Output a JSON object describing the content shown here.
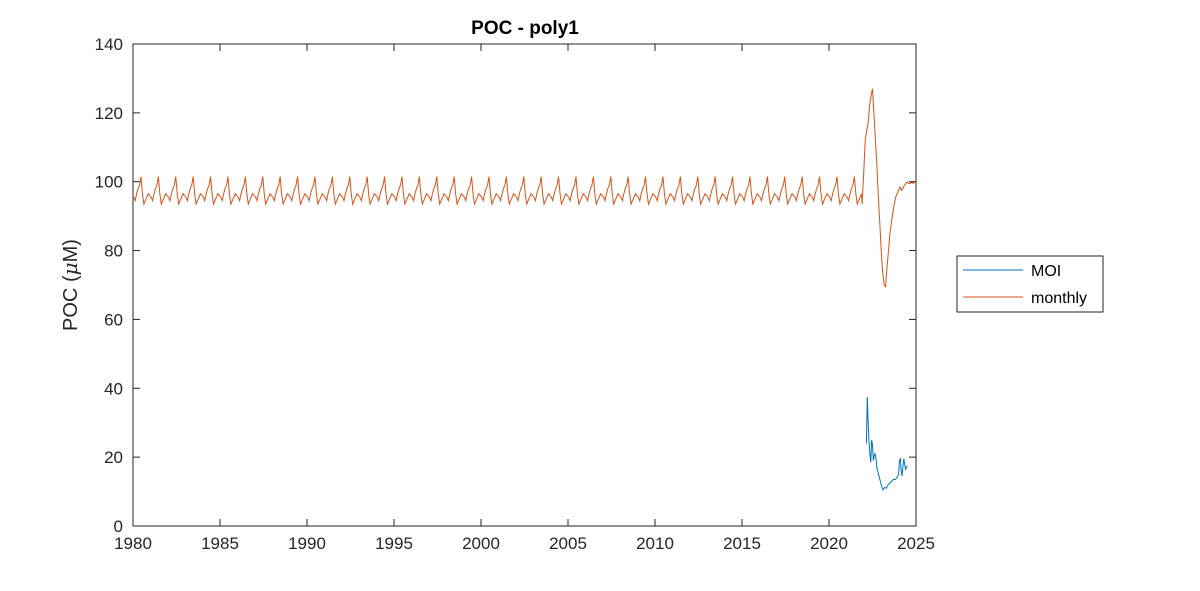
{
  "chart_data": {
    "type": "line",
    "title": "POC - poly1",
    "xlabel": "",
    "ylabel_text": "POC (",
    "ylabel_mu": "μ",
    "ylabel_unit": "M)",
    "xlim": [
      1980,
      2025
    ],
    "ylim": [
      0,
      140
    ],
    "xticks": [
      1980,
      1985,
      1990,
      1995,
      2000,
      2005,
      2010,
      2015,
      2020,
      2025
    ],
    "yticks": [
      0,
      20,
      40,
      60,
      80,
      100,
      120,
      140
    ],
    "grid": false,
    "legend_position": "outside-right",
    "seasonal_cycle": {
      "description_values": "monthly climatology repeated each year 1980-2021",
      "start_year": 1980,
      "end_year": 2022,
      "month_values": [
        95.5,
        94.5,
        96.5,
        98,
        99,
        101.5,
        96.5,
        93.5,
        94.5,
        95.5,
        96.5,
        96
      ]
    },
    "series": [
      {
        "name": "MOI",
        "color": "#0072BD",
        "x": [
          2022.15,
          2022.2,
          2022.25,
          2022.3,
          2022.35,
          2022.4,
          2022.45,
          2022.5,
          2022.55,
          2022.6,
          2022.65,
          2022.7,
          2022.75,
          2022.8,
          2022.9,
          2023.0,
          2023.1,
          2023.2,
          2023.3,
          2023.4,
          2023.5,
          2023.6,
          2023.7,
          2023.8,
          2023.9,
          2024.0,
          2024.05,
          2024.1,
          2024.15,
          2024.2,
          2024.25,
          2024.3,
          2024.35,
          2024.4,
          2024.45,
          2024.5
        ],
        "y": [
          24,
          37.5,
          30,
          24.5,
          21,
          18.5,
          25,
          23.5,
          19,
          20.5,
          21,
          19.5,
          17,
          16,
          14,
          12,
          10.5,
          11.2,
          11,
          12,
          12.5,
          13,
          13.5,
          13.5,
          14,
          15,
          19,
          19.5,
          16,
          14.5,
          17.5,
          19.5,
          18,
          16.5,
          17,
          17.5
        ]
      },
      {
        "name": "monthly",
        "color": "#D95319",
        "tail_x": [
          2021.9,
          2022.0,
          2022.08,
          2022.17,
          2022.25,
          2022.33,
          2022.42,
          2022.5,
          2022.58,
          2022.67,
          2022.75,
          2022.83,
          2022.92,
          2023.0,
          2023.08,
          2023.17,
          2023.25,
          2023.33,
          2023.42,
          2023.5,
          2023.58,
          2023.67,
          2023.75,
          2023.83,
          2023.92,
          2024.0,
          2024.08,
          2024.17,
          2024.25,
          2024.33,
          2024.42,
          2024.5,
          2024.58,
          2024.67,
          2024.75,
          2024.83,
          2024.92,
          2025.0
        ],
        "tail_y": [
          93.5,
          103,
          112,
          115,
          117,
          122,
          125,
          127,
          120,
          112,
          105,
          96,
          88,
          80,
          74,
          70,
          69.5,
          75,
          80,
          85,
          88,
          91,
          93.5,
          95.5,
          96.5,
          97.5,
          98.5,
          97.5,
          98,
          99,
          99.5,
          100,
          99.5,
          99.5,
          100,
          99.5,
          100,
          100
        ]
      }
    ]
  }
}
